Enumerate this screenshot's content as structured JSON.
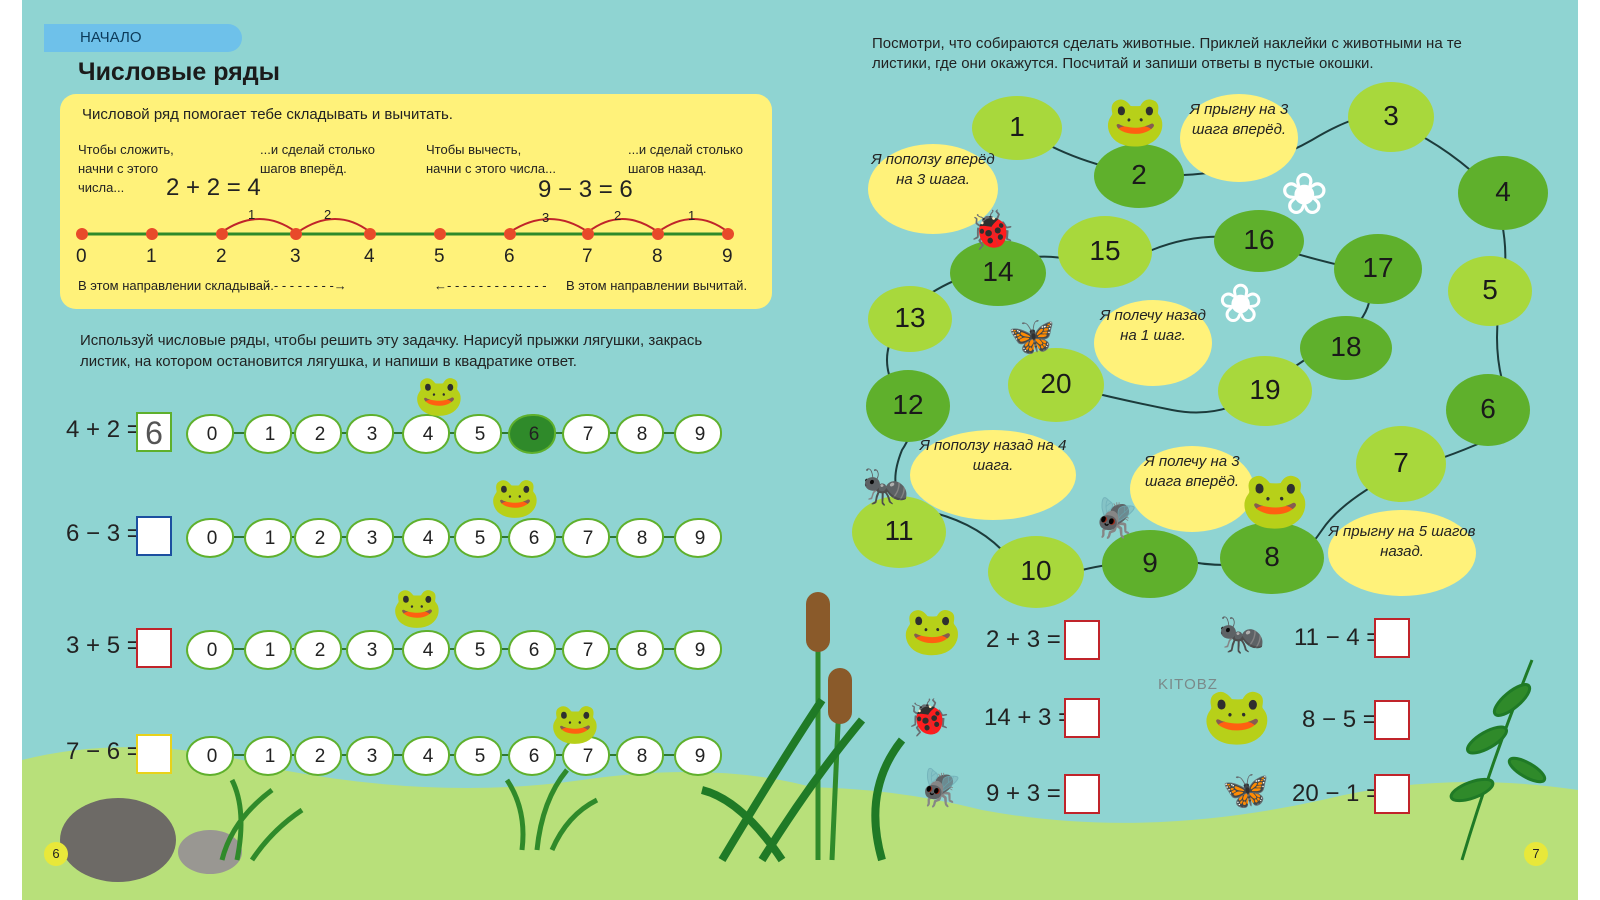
{
  "header": {
    "tab_label": "НАЧАЛО",
    "title": "Числовые ряды"
  },
  "intro": {
    "heading": "Числовой ряд помогает тебе складывать и вычитать.",
    "add_note_1": "Чтобы сложить, начни с этого числа...",
    "add_note_2": "...и сделай столько шагов вперёд.",
    "add_example": "2 + 2 = 4",
    "sub_note_1": "Чтобы вычесть, начни с этого числа...",
    "sub_note_2": "...и сделай столько шагов назад.",
    "sub_example": "9 − 3 = 6",
    "numberline": [
      "0",
      "1",
      "2",
      "3",
      "4",
      "5",
      "6",
      "7",
      "8",
      "9"
    ],
    "add_jumps": [
      "1",
      "2"
    ],
    "sub_jumps": [
      "3",
      "2",
      "1"
    ],
    "add_direction": "В этом направлении складывай.",
    "sub_direction": "В этом направлении вычитай."
  },
  "task": {
    "instructions": "Используй числовые ряды, чтобы решить эту задачку. Нарисуй прыжки лягушки, закрась листик, на котором остановится лягушка, и напиши в квадратике ответ.",
    "pads": [
      "0",
      "1",
      "2",
      "3",
      "4",
      "5",
      "6",
      "7",
      "8",
      "9"
    ],
    "rows": [
      {
        "equation": "4 + 2 =",
        "answer": "6"
      },
      {
        "equation": "6 − 3 =",
        "answer": ""
      },
      {
        "equation": "3 + 5 =",
        "answer": ""
      },
      {
        "equation": "7 − 6 =",
        "answer": ""
      }
    ]
  },
  "right": {
    "instructions": "Посмотри, что собираются сделать животные. Приклей наклейки с животными на те листики, где они окажутся. Посчитай и запиши ответы в пустые окошки.",
    "lilypads": [
      "1",
      "2",
      "3",
      "4",
      "5",
      "6",
      "7",
      "8",
      "9",
      "10",
      "11",
      "12",
      "13",
      "14",
      "15",
      "16",
      "17",
      "18",
      "19",
      "20"
    ],
    "bubbles": {
      "frog": "Я прыгну на 3 шага вперёд.",
      "ladybug": "Я поползу вперёд на 3 шага.",
      "butterfly": "Я полечу назад на 1 шаг.",
      "bug": "Я поползу назад на 4 шага.",
      "dragonfly": "Я полечу на 3 шага вперёд.",
      "toad": "Я прыгну на 5 шагов назад."
    },
    "equations": [
      {
        "text": "2 + 3 ="
      },
      {
        "text": "11 − 4 ="
      },
      {
        "text": "14 + 3 ="
      },
      {
        "text": "8 − 5 ="
      },
      {
        "text": "9 + 3 ="
      },
      {
        "text": "20 − 1 ="
      }
    ]
  },
  "footer": {
    "left_page": "6",
    "right_page": "7",
    "watermark": "KITOBZ"
  },
  "colors": {
    "water": "#8fd4d2",
    "yellow": "#fff27a",
    "leaf": "#5fb02c",
    "lightleaf": "#a8d83c",
    "box_blue": "#1c4fa0",
    "box_red": "#c0242a",
    "box_yellow": "#e8d21a",
    "ground": "#b8e07a"
  }
}
